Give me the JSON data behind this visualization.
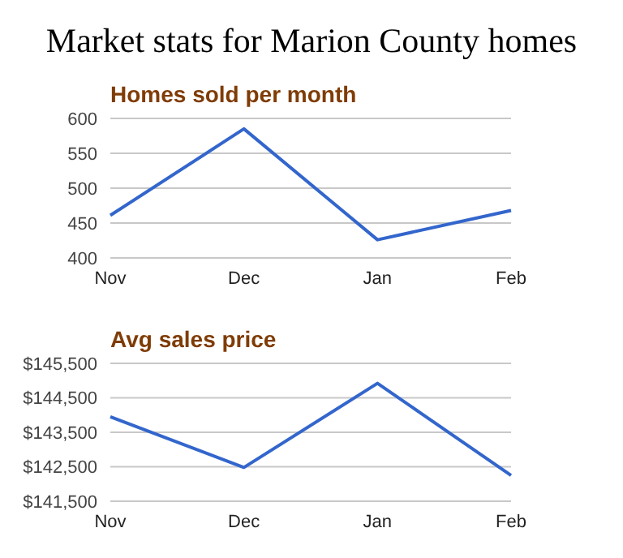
{
  "chart_data": [
    {
      "type": "line",
      "title": "Market stats for Marion County homes",
      "subtitle": "Homes sold per month",
      "categories": [
        "Nov",
        "Dec",
        "Jan",
        "Feb"
      ],
      "series": [
        {
          "color": "#3366cc",
          "values": [
            461,
            585,
            426,
            468
          ]
        }
      ],
      "ylim": [
        400,
        600
      ],
      "yticks": [
        400,
        450,
        500,
        550,
        600
      ],
      "grid": "y"
    },
    {
      "type": "line",
      "title": "Avg sales price",
      "categories": [
        "Nov",
        "Dec",
        "Jan",
        "Feb"
      ],
      "series": [
        {
          "color": "#3366cc",
          "values": [
            143950,
            142480,
            144920,
            142250
          ]
        }
      ],
      "ylim": [
        141500,
        145500
      ],
      "yticks": [
        {
          "value": 141500,
          "label": "$141,500"
        },
        {
          "value": 142500,
          "label": "$142,500"
        },
        {
          "value": 143500,
          "label": "$143,500"
        },
        {
          "value": 144500,
          "label": "$144,500"
        },
        {
          "value": 145500,
          "label": "$145,500"
        }
      ],
      "grid": "y"
    }
  ]
}
